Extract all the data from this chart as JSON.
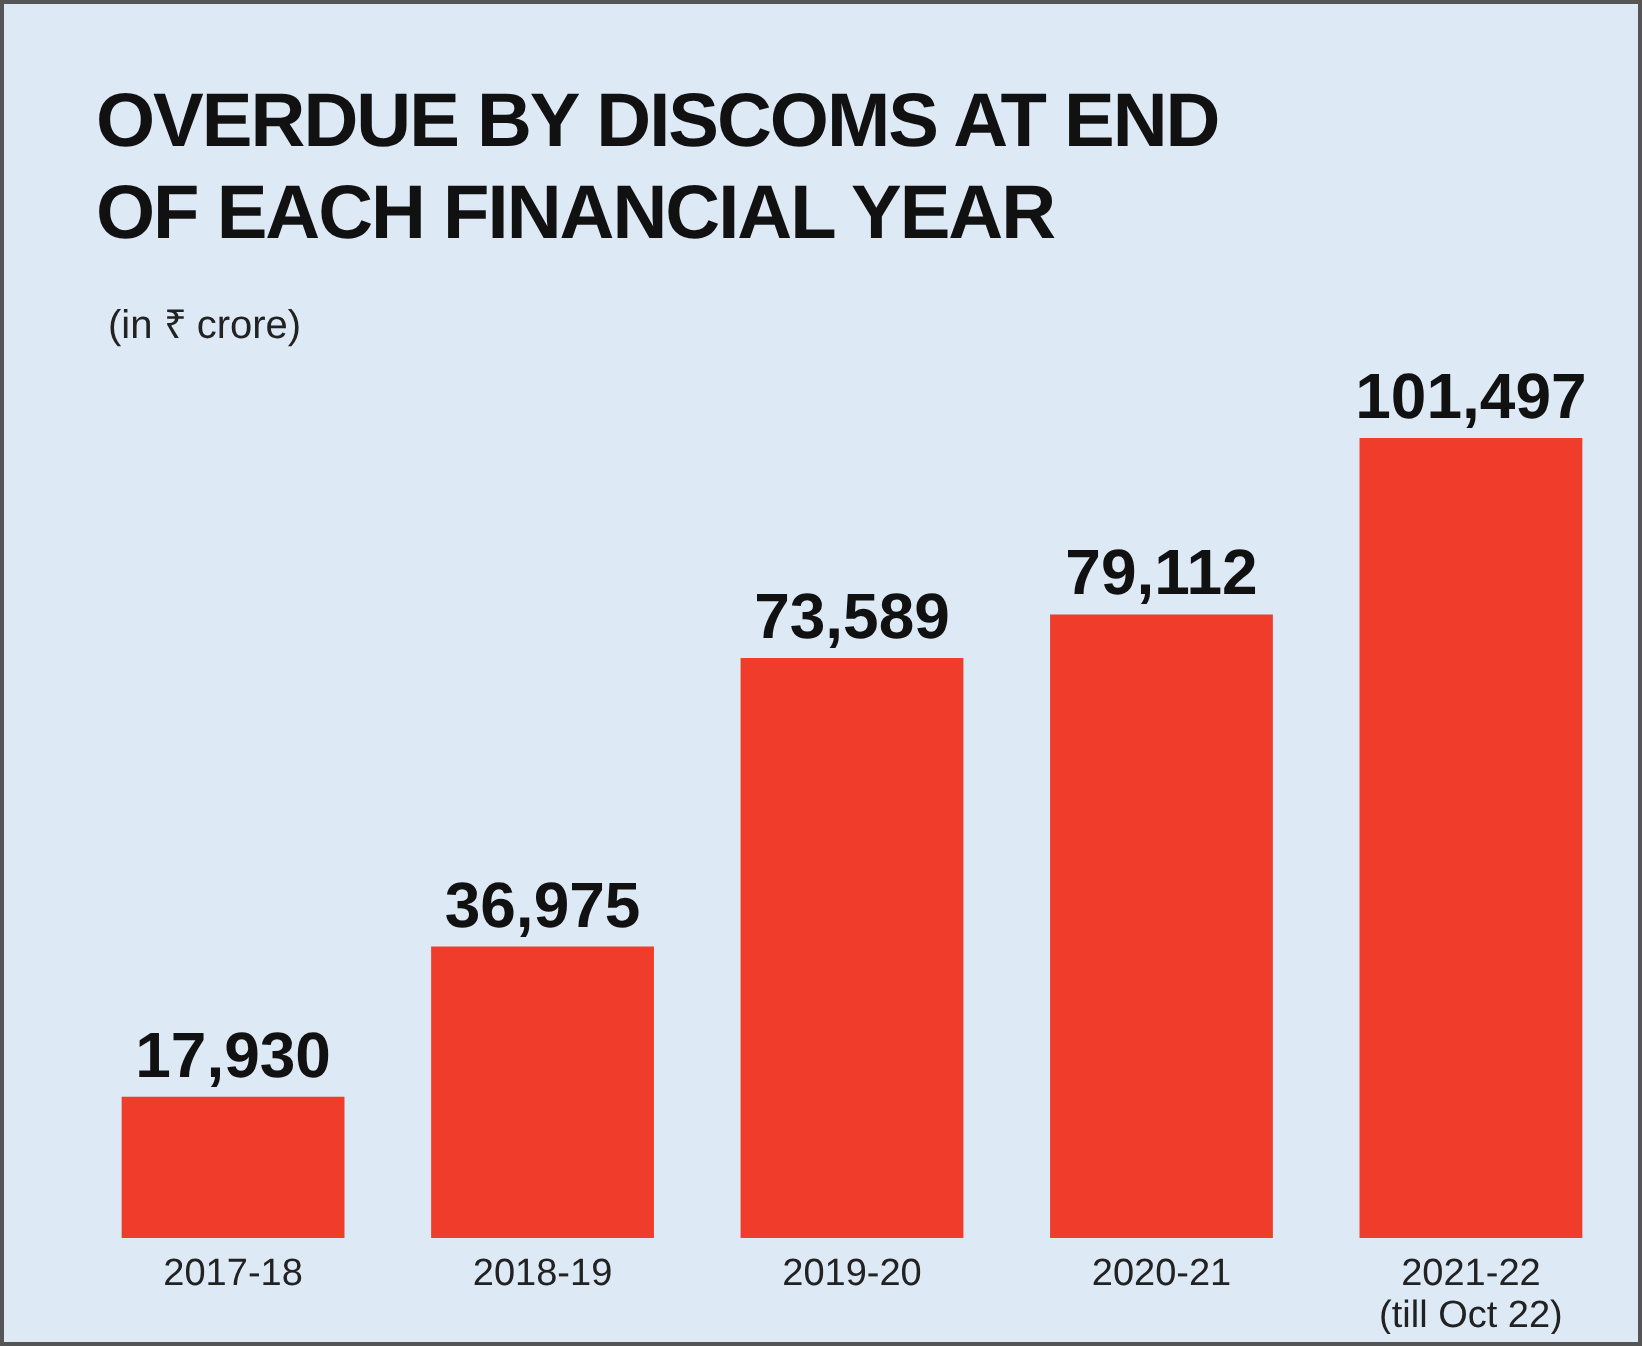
{
  "chart_data": {
    "type": "bar",
    "title": "OVERDUE BY DISCOMS AT END OF EACH FINANCIAL YEAR",
    "subtitle": "(in ₹ crore)",
    "categories": [
      "2017-18",
      "2018-19",
      "2019-20",
      "2020-21",
      "2021-22\n(till Oct 22)"
    ],
    "values": [
      17930,
      36975,
      73589,
      79112,
      101497
    ],
    "color": "#f03c2a",
    "value_labels": [
      "17,930",
      "36,975",
      "73,589",
      "79,112",
      "101,497"
    ]
  }
}
